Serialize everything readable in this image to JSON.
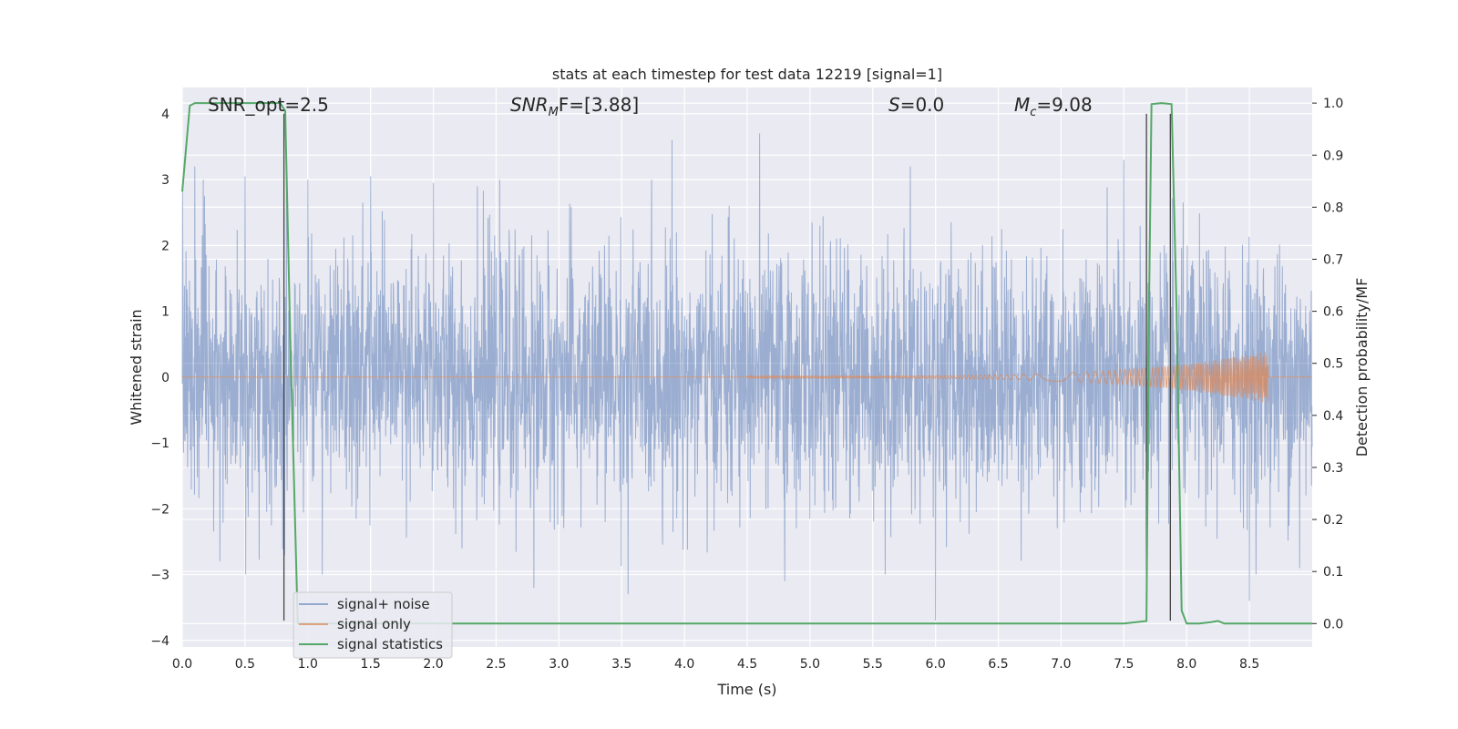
{
  "chart_data": {
    "type": "line",
    "title": "stats at each timestep for test data 12219 [signal=1]",
    "xlabel": "Time (s)",
    "ylabel": "Whitened strain",
    "y2label": "Detection probability/MF",
    "xlim": [
      0.0,
      9.0
    ],
    "ylim": [
      -4.1,
      4.4
    ],
    "y2lim": [
      -0.045,
      1.03
    ],
    "xticks": [
      "0.0",
      "0.5",
      "1.0",
      "1.5",
      "2.0",
      "2.5",
      "3.0",
      "3.5",
      "4.0",
      "4.5",
      "5.0",
      "5.5",
      "6.0",
      "6.5",
      "7.0",
      "7.5",
      "8.0",
      "8.5"
    ],
    "yticks": [
      "4",
      "3",
      "2",
      "1",
      "0",
      "−1",
      "−2",
      "−3",
      "−4"
    ],
    "y2ticks": [
      "1.0",
      "0.9",
      "0.8",
      "0.7",
      "0.6",
      "0.5",
      "0.4",
      "0.3",
      "0.2",
      "0.1",
      "0.0"
    ],
    "grid": true,
    "legend_position": "lower-left",
    "annotations": [
      {
        "text": "SNR_opt=2.5",
        "x": 0.2
      },
      {
        "text_main": "SNR",
        "text_sub": "M",
        "text_rest": "F=[3.88]",
        "x": 2.6
      },
      {
        "text_main": "S",
        "text_rest": "=0.0",
        "x": 5.6
      },
      {
        "text_main": "M",
        "text_sub": "c",
        "text_rest": "=9.08",
        "x": 6.6
      }
    ],
    "series": [
      {
        "name": "signal+ noise",
        "color": "#4c72b0",
        "axis": "left",
        "description": "dense whitened noise, approx Gaussian sigma 1",
        "peaks": [
          [
            0.1,
            3.2
          ],
          [
            0.3,
            3.0
          ],
          [
            0.5,
            3.05
          ],
          [
            1.0,
            3.0
          ],
          [
            1.5,
            3.05
          ],
          [
            2.0,
            2.95
          ],
          [
            2.35,
            2.9
          ],
          [
            3.9,
            3.6
          ],
          [
            4.6,
            3.7
          ],
          [
            5.8,
            3.2
          ],
          [
            7.5,
            3.3
          ],
          [
            8.9,
            3.0
          ],
          [
            0.3,
            -2.8
          ],
          [
            2.8,
            -3.2
          ],
          [
            3.55,
            -3.3
          ],
          [
            4.8,
            -3.1
          ],
          [
            5.6,
            -3.0
          ],
          [
            6.0,
            -3.7
          ],
          [
            8.5,
            -3.4
          ],
          [
            8.9,
            -2.9
          ]
        ]
      },
      {
        "name": "signal only",
        "color": "#dd8452",
        "axis": "left",
        "chirp_start": 4.5,
        "chirp_peak": 8.65,
        "chirp_peak_amplitude": 0.38
      },
      {
        "name": "signal statistics",
        "color": "#55a868",
        "axis": "right",
        "x": [
          0.0,
          0.06,
          0.1,
          0.2,
          0.3,
          0.4,
          0.5,
          0.6,
          0.7,
          0.78,
          0.82,
          0.86,
          0.92,
          1.0,
          2.0,
          3.0,
          4.0,
          5.0,
          6.0,
          7.0,
          7.5,
          7.68,
          7.7,
          7.72,
          7.8,
          7.88,
          7.92,
          7.96,
          8.0,
          8.1,
          8.2,
          8.25,
          8.3,
          8.5,
          9.0
        ],
        "values": [
          0.83,
          0.995,
          1.0,
          1.0,
          1.0,
          1.0,
          1.0,
          1.0,
          1.0,
          1.0,
          0.985,
          0.55,
          0.0,
          0.0,
          0.0,
          0.0,
          0.0,
          0.0,
          0.0,
          0.0,
          0.0,
          0.005,
          0.6,
          0.998,
          1.0,
          0.998,
          0.6,
          0.025,
          0.0,
          0.0,
          0.003,
          0.005,
          0.0,
          0.0,
          0.0
        ]
      }
    ],
    "vertical_lines": [
      0.81,
      7.68,
      7.87
    ],
    "vertical_lines_range": [
      -3.7,
      4.0
    ]
  }
}
